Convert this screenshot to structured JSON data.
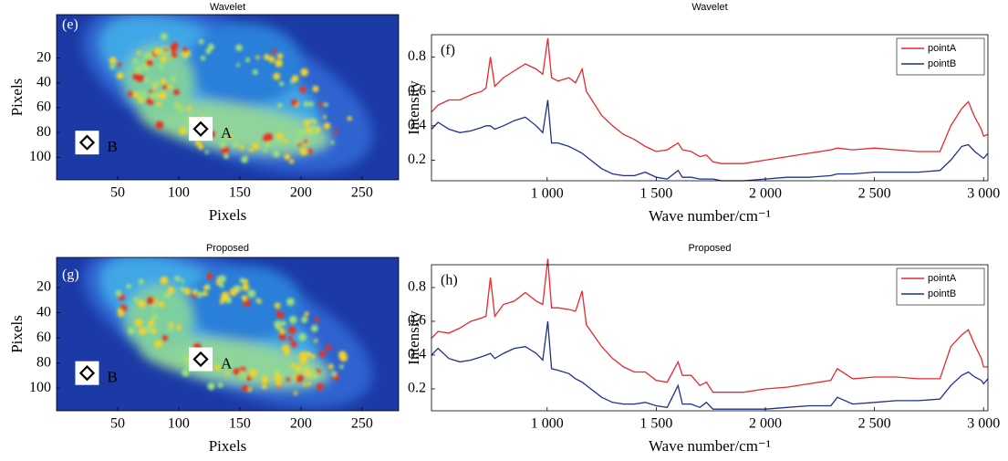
{
  "chart_data": [
    {
      "type": "heatmap",
      "title": "Wavelet",
      "panel_label": "(e)",
      "x_label": "Pixels",
      "y_label": "Pixels",
      "xlim": [
        0,
        280
      ],
      "xticks": [
        50,
        100,
        150,
        200,
        250
      ],
      "ylim": [
        -15,
        118
      ],
      "yticks": [
        20,
        40,
        60,
        80,
        100
      ],
      "annotations": [
        "A",
        "B"
      ]
    },
    {
      "type": "line",
      "title": "Wavelet",
      "panel_label": "(f)",
      "x_label": "Wave number/cm⁻¹",
      "y_label": "Intensity",
      "xlim": [
        470,
        3020
      ],
      "xticks": [
        {
          "value": 1000,
          "label": "1 000"
        },
        {
          "value": 1500,
          "label": "1 500"
        },
        {
          "value": 2000,
          "label": "2 000"
        },
        {
          "value": 2500,
          "label": "2 500"
        },
        {
          "value": 3000,
          "label": "3 000"
        }
      ],
      "ylim": [
        0.08,
        0.93
      ],
      "yticks": [
        0.2,
        0.4,
        0.6,
        0.8
      ],
      "legend": "upper right",
      "x": [
        470,
        500,
        550,
        600,
        650,
        700,
        720,
        740,
        760,
        800,
        850,
        900,
        950,
        980,
        1003,
        1020,
        1050,
        1100,
        1130,
        1160,
        1180,
        1250,
        1300,
        1350,
        1400,
        1450,
        1500,
        1550,
        1600,
        1620,
        1660,
        1700,
        1730,
        1760,
        1800,
        1900,
        2000,
        2100,
        2200,
        2300,
        2330,
        2400,
        2500,
        2600,
        2700,
        2800,
        2850,
        2900,
        2930,
        2960,
        2990,
        3000,
        3020
      ],
      "series": [
        {
          "name": "pointA",
          "color": "#e8282e",
          "values": [
            0.48,
            0.52,
            0.55,
            0.55,
            0.58,
            0.6,
            0.62,
            0.8,
            0.63,
            0.68,
            0.72,
            0.76,
            0.73,
            0.7,
            0.91,
            0.68,
            0.66,
            0.68,
            0.65,
            0.73,
            0.6,
            0.46,
            0.4,
            0.35,
            0.32,
            0.28,
            0.25,
            0.26,
            0.3,
            0.26,
            0.25,
            0.22,
            0.23,
            0.19,
            0.18,
            0.18,
            0.2,
            0.22,
            0.24,
            0.26,
            0.27,
            0.26,
            0.27,
            0.26,
            0.25,
            0.25,
            0.4,
            0.5,
            0.54,
            0.45,
            0.38,
            0.34,
            0.35
          ]
        },
        {
          "name": "pointB",
          "color": "#1f2f8f",
          "values": [
            0.38,
            0.42,
            0.38,
            0.36,
            0.37,
            0.39,
            0.4,
            0.4,
            0.38,
            0.4,
            0.43,
            0.45,
            0.4,
            0.36,
            0.55,
            0.3,
            0.3,
            0.28,
            0.26,
            0.24,
            0.22,
            0.15,
            0.12,
            0.11,
            0.11,
            0.13,
            0.1,
            0.09,
            0.14,
            0.1,
            0.1,
            0.09,
            0.09,
            0.09,
            0.08,
            0.08,
            0.09,
            0.1,
            0.1,
            0.11,
            0.12,
            0.12,
            0.13,
            0.13,
            0.13,
            0.14,
            0.2,
            0.28,
            0.29,
            0.25,
            0.22,
            0.21,
            0.24
          ]
        }
      ]
    },
    {
      "type": "heatmap",
      "title": "Proposed",
      "panel_label": "(g)",
      "x_label": "Pixels",
      "y_label": "Pixels",
      "xlim": [
        0,
        280
      ],
      "xticks": [
        50,
        100,
        150,
        200,
        250
      ],
      "ylim": [
        -4,
        118
      ],
      "yticks": [
        20,
        40,
        60,
        80,
        100
      ],
      "annotations": [
        "A",
        "B"
      ]
    },
    {
      "type": "line",
      "title": "Proposed",
      "panel_label": "(h)",
      "x_label": "Wave number/cm⁻¹",
      "y_label": "Intensity",
      "xlim": [
        470,
        3020
      ],
      "xticks": [
        {
          "value": 1000,
          "label": "1 000"
        },
        {
          "value": 1500,
          "label": "1 500"
        },
        {
          "value": 2000,
          "label": "2 000"
        },
        {
          "value": 2500,
          "label": "2 500"
        },
        {
          "value": 3000,
          "label": "3 000"
        }
      ],
      "ylim": [
        0.07,
        0.935
      ],
      "yticks": [
        0.2,
        0.4,
        0.6,
        0.8
      ],
      "legend": "upper right",
      "x": [
        470,
        500,
        550,
        600,
        650,
        700,
        720,
        740,
        760,
        800,
        850,
        900,
        950,
        980,
        1003,
        1020,
        1050,
        1100,
        1130,
        1160,
        1180,
        1250,
        1300,
        1350,
        1400,
        1450,
        1500,
        1550,
        1600,
        1620,
        1660,
        1700,
        1730,
        1760,
        1800,
        1900,
        2000,
        2100,
        2200,
        2300,
        2330,
        2400,
        2500,
        2600,
        2700,
        2800,
        2850,
        2900,
        2930,
        2960,
        2990,
        3000,
        3020
      ],
      "series": [
        {
          "name": "pointA",
          "color": "#e8282e",
          "values": [
            0.5,
            0.54,
            0.53,
            0.56,
            0.6,
            0.62,
            0.63,
            0.86,
            0.63,
            0.7,
            0.72,
            0.77,
            0.72,
            0.7,
            0.97,
            0.68,
            0.68,
            0.67,
            0.66,
            0.78,
            0.58,
            0.45,
            0.38,
            0.33,
            0.3,
            0.3,
            0.25,
            0.24,
            0.36,
            0.28,
            0.28,
            0.22,
            0.24,
            0.18,
            0.18,
            0.18,
            0.2,
            0.21,
            0.23,
            0.25,
            0.32,
            0.26,
            0.27,
            0.27,
            0.26,
            0.26,
            0.45,
            0.52,
            0.55,
            0.46,
            0.38,
            0.33,
            0.33
          ]
        },
        {
          "name": "pointB",
          "color": "#1f2f8f",
          "values": [
            0.4,
            0.44,
            0.38,
            0.36,
            0.37,
            0.39,
            0.4,
            0.41,
            0.38,
            0.41,
            0.44,
            0.45,
            0.41,
            0.37,
            0.6,
            0.32,
            0.31,
            0.29,
            0.26,
            0.24,
            0.22,
            0.15,
            0.12,
            0.11,
            0.11,
            0.12,
            0.1,
            0.09,
            0.22,
            0.11,
            0.11,
            0.09,
            0.12,
            0.08,
            0.08,
            0.08,
            0.08,
            0.09,
            0.1,
            0.1,
            0.15,
            0.11,
            0.12,
            0.13,
            0.13,
            0.14,
            0.22,
            0.28,
            0.3,
            0.27,
            0.25,
            0.23,
            0.26
          ]
        }
      ]
    }
  ]
}
